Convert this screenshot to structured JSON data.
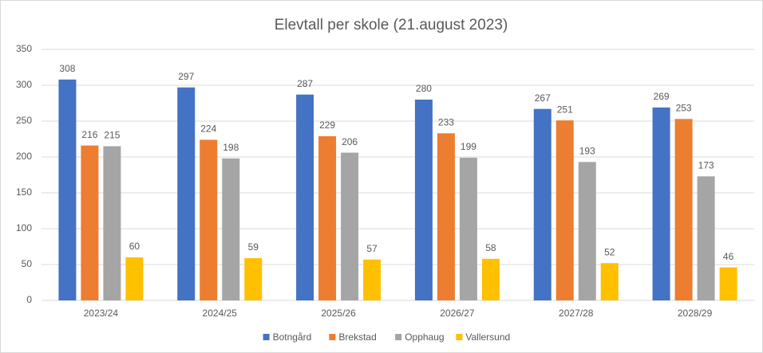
{
  "chart_data": {
    "type": "bar",
    "title": "Elevtall per skole (21.august 2023)",
    "categories": [
      "2023/24",
      "2024/25",
      "2025/26",
      "2026/27",
      "2027/28",
      "2028/29"
    ],
    "series": [
      {
        "name": "Botngård",
        "color": "#4472c4",
        "values": [
          308,
          297,
          287,
          280,
          267,
          269
        ]
      },
      {
        "name": "Brekstad",
        "color": "#ed7d31",
        "values": [
          216,
          224,
          229,
          233,
          251,
          253
        ]
      },
      {
        "name": "Opphaug",
        "color": "#a5a5a5",
        "values": [
          215,
          198,
          206,
          199,
          193,
          173
        ]
      },
      {
        "name": "Vallersund",
        "color": "#ffc000",
        "values": [
          60,
          59,
          57,
          58,
          52,
          46
        ]
      }
    ],
    "ylim": [
      0,
      350
    ],
    "yticks": [
      0,
      50,
      100,
      150,
      200,
      250,
      300,
      350
    ],
    "grid": true,
    "legend": "bottom"
  }
}
